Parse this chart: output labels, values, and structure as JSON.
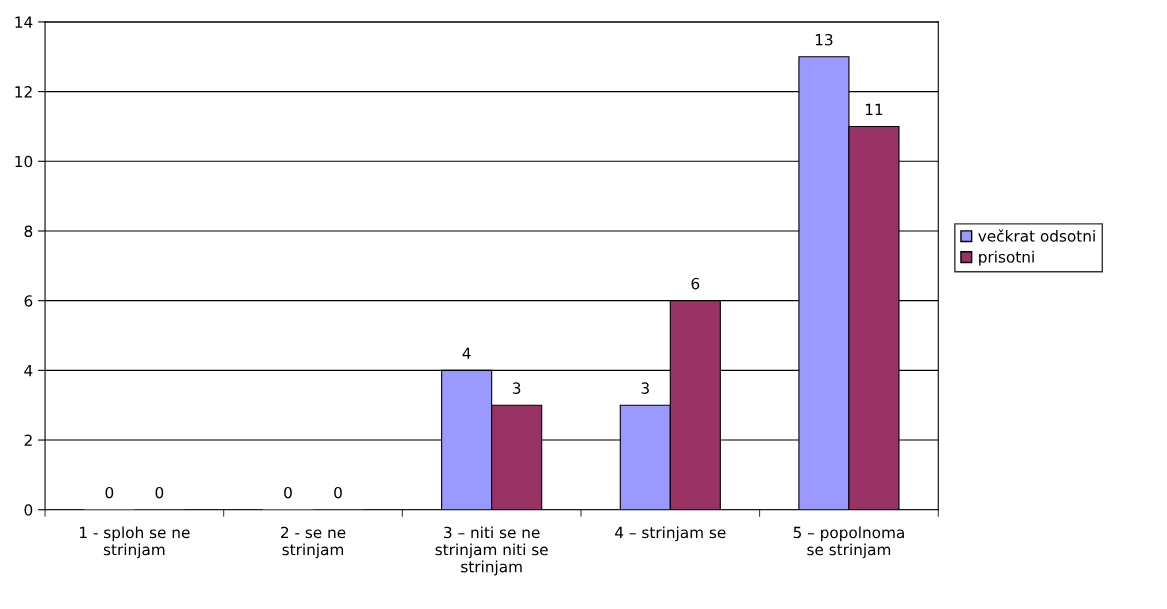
{
  "chart_data": {
    "type": "bar",
    "categories": [
      "1 - sploh se ne\nstrinjam",
      "2 - se ne\nstrinjam",
      "3 – niti se ne\nstrinjam niti se\nstrinjam",
      "4 – strinjam se",
      "5 – popolnoma\nse strinjam"
    ],
    "series": [
      {
        "name": "večkrat odsotni",
        "color": "#9999ff",
        "values": [
          0,
          0,
          4,
          3,
          13
        ]
      },
      {
        "name": "prisotni",
        "color": "#993366",
        "values": [
          0,
          0,
          3,
          6,
          11
        ]
      }
    ],
    "ylim": [
      0,
      14
    ],
    "yticks": [
      0,
      2,
      4,
      6,
      8,
      10,
      12,
      14
    ],
    "grid": "y",
    "legend": "right",
    "data_labels": true
  }
}
